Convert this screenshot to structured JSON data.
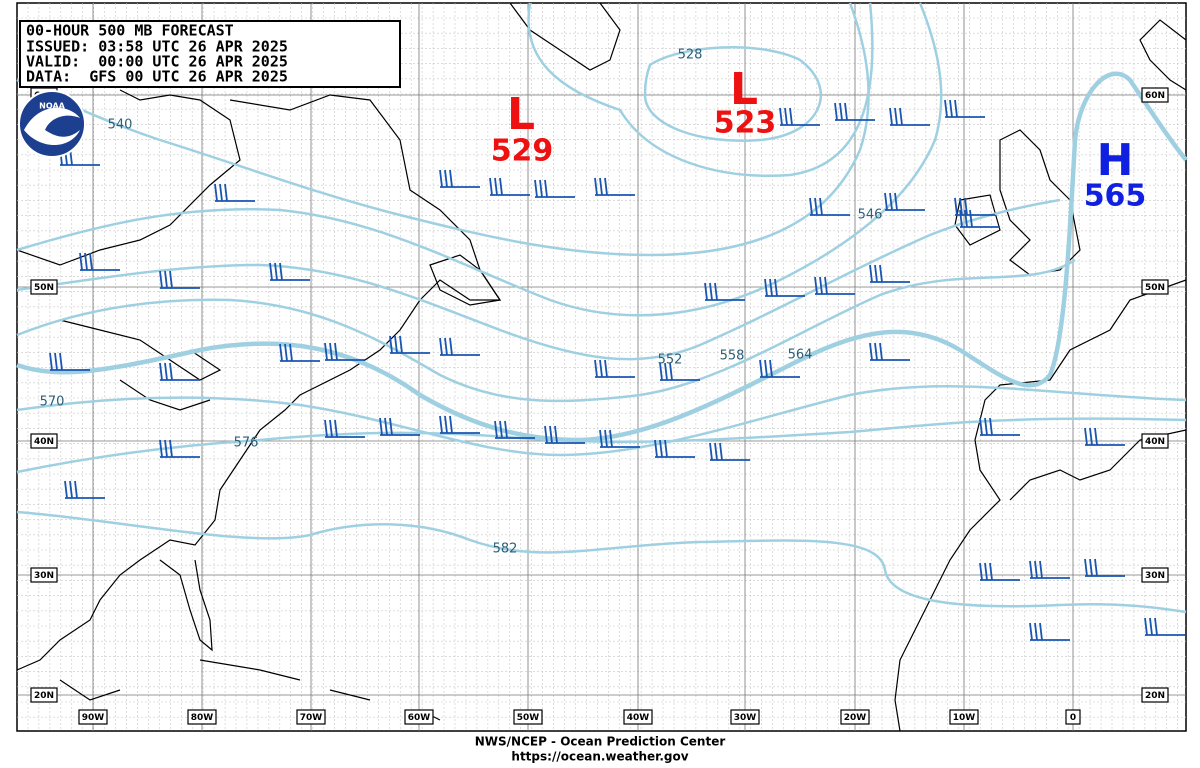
{
  "header": {
    "lines": [
      "00-HOUR 500 MB FORECAST",
      "ISSUED: 03:58 UTC 26 APR 2025",
      "VALID:  00:00 UTC 26 APR 2025",
      "DATA:  GFS 00 UTC 26 APR 2025"
    ]
  },
  "logo": "NOAA",
  "pressure_centers": [
    {
      "label": "L",
      "value": "529"
    },
    {
      "label": "L",
      "value": "523"
    },
    {
      "label": "H",
      "value": "565"
    }
  ],
  "contour_labels": [
    "528",
    "540",
    "546",
    "552",
    "558",
    "564",
    "570",
    "576",
    "582"
  ],
  "latitude_labels": [
    "60N",
    "50N",
    "40N",
    "30N",
    "20N"
  ],
  "longitude_labels": [
    "90W",
    "80W",
    "70W",
    "60W",
    "50W",
    "40W",
    "30W",
    "20W",
    "10W",
    "0"
  ],
  "footer": [
    "NWS/NCEP - Ocean Prediction Center",
    "https://ocean.weather.gov"
  ]
}
